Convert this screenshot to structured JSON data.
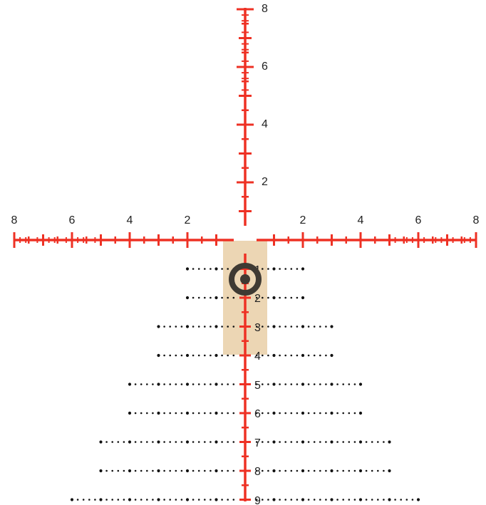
{
  "reticle": {
    "colors": {
      "crosshair": "#ee3124",
      "highlight_box": "#ecd6b4",
      "bullseye_ring": "#3f3a33",
      "dots": "#111111",
      "labels": "#222222"
    },
    "labels": {
      "top": [
        "2",
        "4",
        "6",
        "8"
      ],
      "left": [
        "2",
        "4",
        "6",
        "8"
      ],
      "right": [
        "2",
        "4",
        "6",
        "8"
      ],
      "bottom": [
        "1",
        "2",
        "3",
        "4",
        "5",
        "6",
        "7",
        "8",
        "9"
      ]
    },
    "bullseye_icon": "bullseye-icon",
    "highlight_span": {
      "from_mark": 0,
      "to_mark": 4
    },
    "bullseye_at_mark": 1
  }
}
